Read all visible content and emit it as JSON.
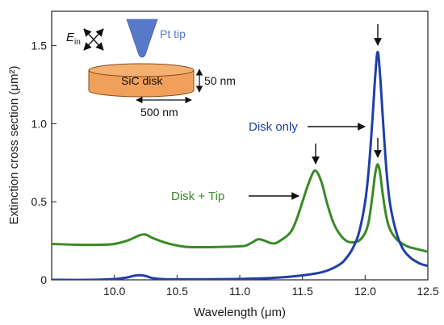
{
  "chart_data": {
    "type": "line",
    "xlabel": "Wavelength (μm)",
    "ylabel": "Extinction cross section (μm²)",
    "xlim": [
      9.5,
      12.5
    ],
    "ylim": [
      0,
      1.72
    ],
    "xticks": [
      10.0,
      10.5,
      11.0,
      11.5,
      12.0,
      12.5
    ],
    "xtick_labels": [
      "10.0",
      "10.5",
      "11.0",
      "11.5",
      "12.0",
      "12.5"
    ],
    "yticks": [
      0,
      0.5,
      1.0,
      1.5
    ],
    "ytick_labels": [
      "0",
      "0.5",
      "1.0",
      "1.5"
    ],
    "grid": false,
    "colors": {
      "disk_only": "#1f3fa8",
      "disk_tip": "#3a8a25",
      "disk_fill": "#f0a05a",
      "tip_fill": "#5878c8"
    },
    "series": [
      {
        "name": "Disk only",
        "x": [
          9.5,
          9.8,
          10.0,
          10.1,
          10.15,
          10.2,
          10.25,
          10.3,
          10.4,
          10.6,
          10.8,
          11.0,
          11.2,
          11.4,
          11.6,
          11.7,
          11.8,
          11.85,
          11.9,
          11.95,
          12.0,
          12.03,
          12.06,
          12.08,
          12.1,
          12.12,
          12.14,
          12.17,
          12.2,
          12.25,
          12.3,
          12.35,
          12.4,
          12.45,
          12.5
        ],
        "values": [
          0.0,
          0.0,
          0.005,
          0.015,
          0.025,
          0.03,
          0.025,
          0.012,
          0.004,
          0.003,
          0.004,
          0.006,
          0.01,
          0.02,
          0.04,
          0.06,
          0.1,
          0.14,
          0.2,
          0.3,
          0.5,
          0.72,
          1.05,
          1.3,
          1.46,
          1.3,
          1.05,
          0.7,
          0.48,
          0.3,
          0.2,
          0.15,
          0.12,
          0.1,
          0.09
        ]
      },
      {
        "name": "Disk + Tip",
        "x": [
          9.5,
          9.7,
          9.9,
          10.0,
          10.1,
          10.2,
          10.25,
          10.3,
          10.4,
          10.5,
          10.6,
          10.8,
          11.0,
          11.05,
          11.1,
          11.15,
          11.2,
          11.25,
          11.3,
          11.4,
          11.45,
          11.5,
          11.55,
          11.6,
          11.65,
          11.7,
          11.75,
          11.8,
          11.85,
          11.9,
          11.95,
          12.0,
          12.03,
          12.06,
          12.08,
          12.1,
          12.12,
          12.14,
          12.17,
          12.2,
          12.25,
          12.3,
          12.35,
          12.4,
          12.45,
          12.5
        ],
        "values": [
          0.23,
          0.225,
          0.225,
          0.23,
          0.25,
          0.285,
          0.29,
          0.27,
          0.24,
          0.22,
          0.21,
          0.21,
          0.215,
          0.22,
          0.24,
          0.26,
          0.25,
          0.235,
          0.24,
          0.3,
          0.38,
          0.5,
          0.62,
          0.7,
          0.63,
          0.48,
          0.36,
          0.29,
          0.25,
          0.24,
          0.25,
          0.3,
          0.38,
          0.55,
          0.68,
          0.74,
          0.68,
          0.55,
          0.4,
          0.32,
          0.26,
          0.23,
          0.21,
          0.2,
          0.19,
          0.18
        ]
      }
    ],
    "annotations": [
      {
        "text": "Disk only",
        "color": "#1f3fa8"
      },
      {
        "text": "Disk + Tip",
        "color": "#3a8a25"
      }
    ],
    "inset": {
      "e_field_label": "E",
      "e_field_subscript": "in",
      "tip_label": "Pt tip",
      "disk_label": "SiC disk",
      "height_label": "50 nm",
      "diameter_label": "500 nm"
    }
  }
}
